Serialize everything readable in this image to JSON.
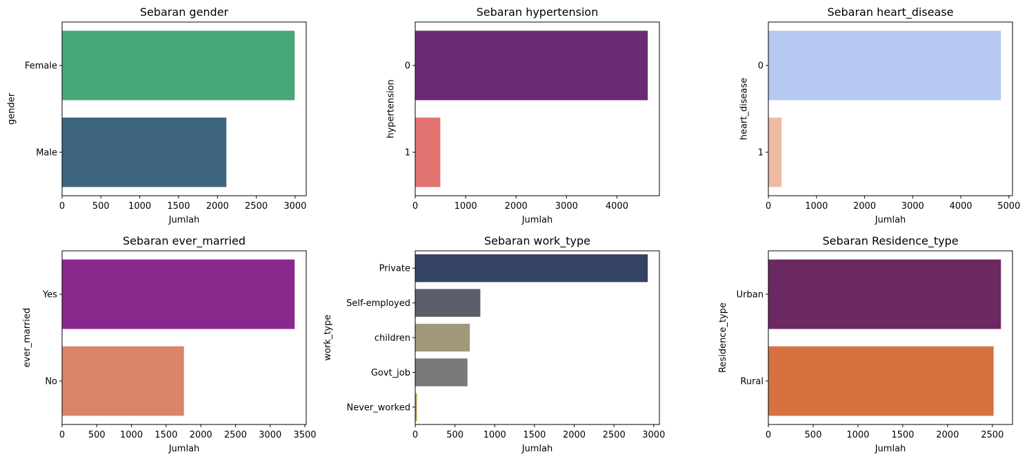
{
  "chart_data": [
    {
      "type": "bar",
      "orientation": "horizontal",
      "title": "Sebaran gender",
      "xlabel": "Jumlah",
      "ylabel": "gender",
      "categories": [
        "Female",
        "Male"
      ],
      "values": [
        2994,
        2115
      ],
      "colors": [
        "#47a777",
        "#3d6580"
      ],
      "xlim": [
        0,
        3143
      ],
      "xticks": [
        0,
        500,
        1000,
        1500,
        2000,
        2500,
        3000
      ],
      "grid": false
    },
    {
      "type": "bar",
      "orientation": "horizontal",
      "title": "Sebaran hypertension",
      "xlabel": "Jumlah",
      "ylabel": "hypertension",
      "categories": [
        "0",
        "1"
      ],
      "values": [
        4612,
        498
      ],
      "colors": [
        "#6a2b73",
        "#e17370"
      ],
      "xlim": [
        0,
        4842
      ],
      "xticks": [
        0,
        1000,
        2000,
        3000,
        4000
      ],
      "grid": false
    },
    {
      "type": "bar",
      "orientation": "horizontal",
      "title": "Sebaran heart_disease",
      "xlabel": "Jumlah",
      "ylabel": "heart_disease",
      "categories": [
        "0",
        "1"
      ],
      "values": [
        4834,
        276
      ],
      "colors": [
        "#b5c9f2",
        "#f0bba5"
      ],
      "xlim": [
        0,
        5075
      ],
      "xticks": [
        0,
        1000,
        2000,
        3000,
        4000,
        5000
      ],
      "grid": false
    },
    {
      "type": "bar",
      "orientation": "horizontal",
      "title": "Sebaran ever_married",
      "xlabel": "Jumlah",
      "ylabel": "ever_married",
      "categories": [
        "Yes",
        "No"
      ],
      "values": [
        3353,
        1757
      ],
      "colors": [
        "#8a278c",
        "#db8467"
      ],
      "xlim": [
        0,
        3520
      ],
      "xticks": [
        0,
        500,
        1000,
        1500,
        2000,
        2500,
        3000,
        3500
      ],
      "grid": false
    },
    {
      "type": "bar",
      "orientation": "horizontal",
      "title": "Sebaran work_type",
      "xlabel": "Jumlah",
      "ylabel": "work_type",
      "categories": [
        "Private",
        "Self-employed",
        "children",
        "Govt_job",
        "Never_worked"
      ],
      "values": [
        2925,
        819,
        687,
        657,
        22
      ],
      "colors": [
        "#354365",
        "#5b5e6b",
        "#a09879",
        "#7a7878",
        "#b0a060"
      ],
      "xlim": [
        0,
        3071
      ],
      "xticks": [
        0,
        500,
        1000,
        1500,
        2000,
        2500,
        3000
      ],
      "grid": false
    },
    {
      "type": "bar",
      "orientation": "horizontal",
      "title": "Sebaran Residence_type",
      "xlabel": "Jumlah",
      "ylabel": "Residence_type",
      "categories": [
        "Urban",
        "Rural"
      ],
      "values": [
        2596,
        2514
      ],
      "colors": [
        "#6b2861",
        "#d57240"
      ],
      "xlim": [
        0,
        2725
      ],
      "xticks": [
        0,
        500,
        1000,
        1500,
        2000,
        2500
      ],
      "grid": false
    }
  ]
}
